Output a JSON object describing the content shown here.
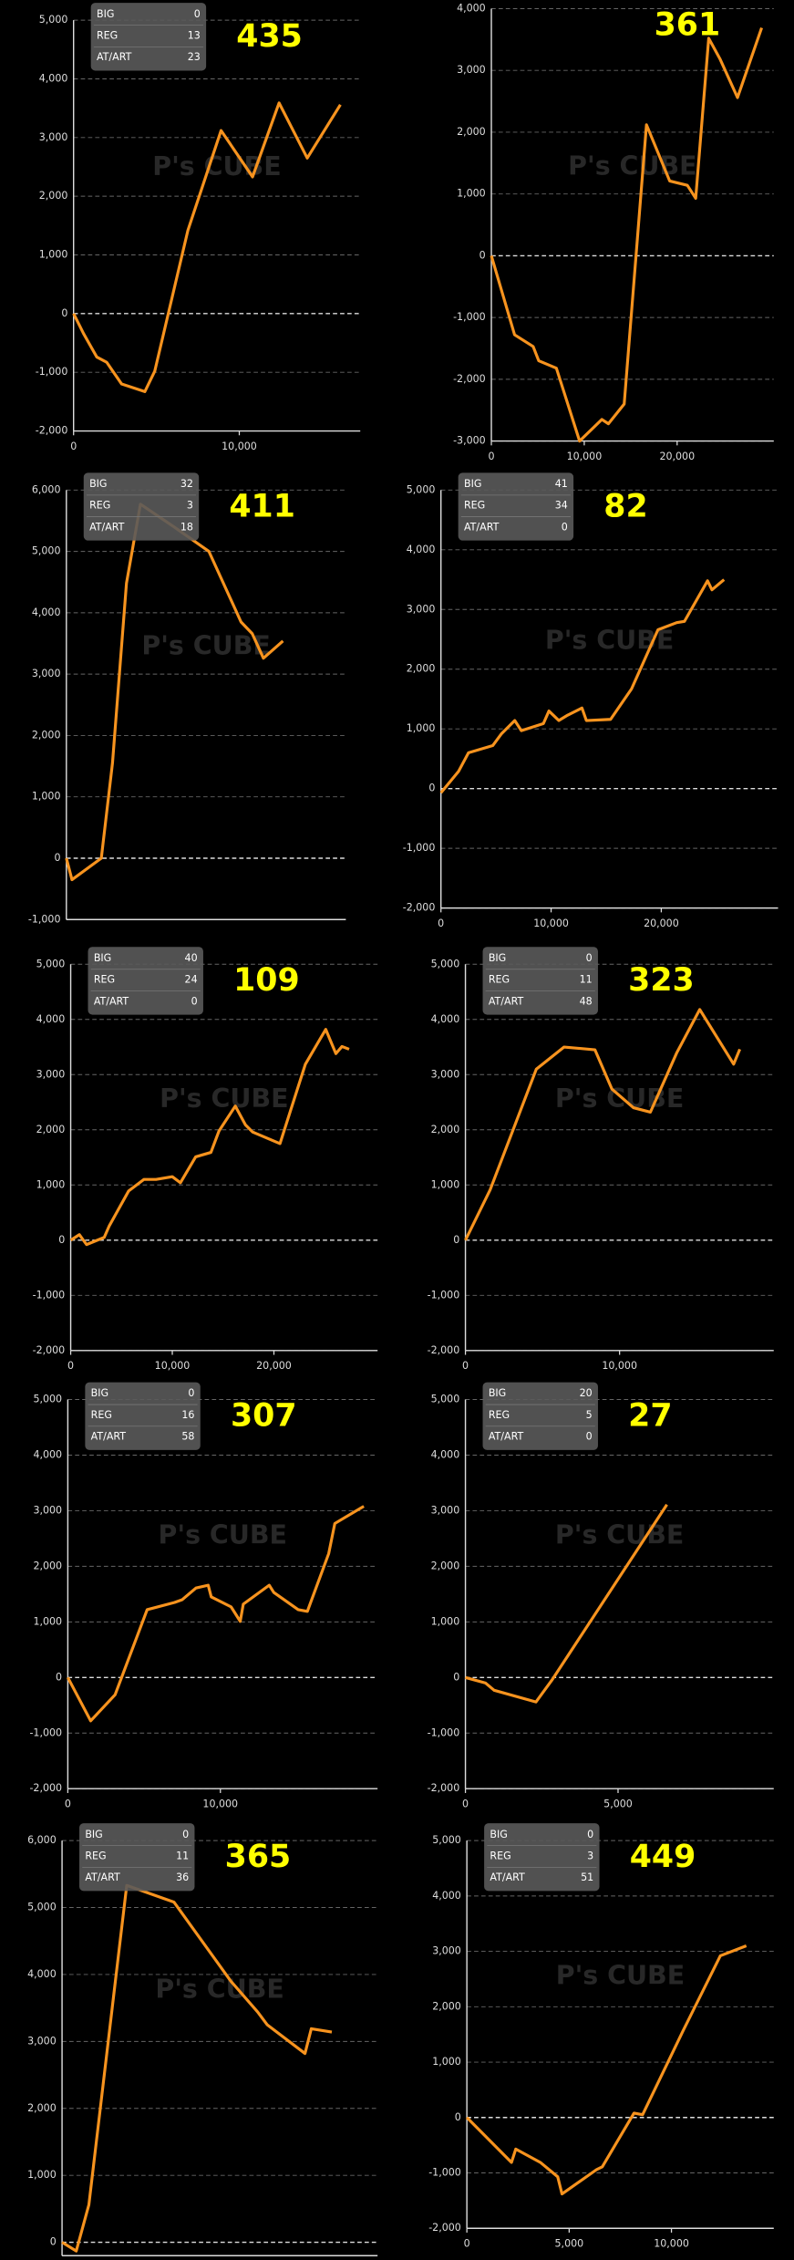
{
  "watermark": "P's CUBE",
  "chart_data": [
    {
      "type": "line",
      "badge": "435",
      "stats": [
        {
          "label": "BIG",
          "value": 0
        },
        {
          "label": "REG",
          "value": 13
        },
        {
          "label": "AT/ART",
          "value": 23
        }
      ],
      "xlim": [
        0,
        17300
      ],
      "xticks": [
        0,
        {
          "value": 10000,
          "label": "10,000"
        }
      ],
      "ylim": [
        -2000,
        5000
      ],
      "yticks": [
        {
          "value": -2000,
          "label": "-2,000"
        },
        {
          "value": -1000,
          "label": "-1,000"
        },
        0,
        {
          "value": 1000,
          "label": "1,000"
        },
        {
          "value": 2000,
          "label": "2,000"
        },
        {
          "value": 3000,
          "label": "3,000"
        },
        {
          "value": 4000,
          "label": "4,000"
        },
        {
          "value": 5000,
          "label": "5,000"
        }
      ],
      "grid": true,
      "series": [
        {
          "color": "#f7931e",
          "x": [
            0,
            600,
            1400,
            2000,
            2900,
            4300,
            4900,
            6900,
            8900,
            10800,
            12400,
            14100,
            16100
          ],
          "values": [
            0,
            -340,
            -740,
            -830,
            -1200,
            -1330,
            -980,
            1420,
            3120,
            2330,
            3590,
            2650,
            3560
          ]
        }
      ]
    },
    {
      "type": "line",
      "badge": "361",
      "xlim": [
        0,
        30400
      ],
      "xticks": [
        0,
        {
          "value": 10000,
          "label": "10,000"
        },
        {
          "value": 20000,
          "label": "20,000"
        }
      ],
      "ylim": [
        -3000,
        4000
      ],
      "yticks": [
        {
          "value": -3000,
          "label": "-3,000"
        },
        {
          "value": -2000,
          "label": "-2,000"
        },
        {
          "value": -1000,
          "label": "-1,000"
        },
        0,
        {
          "value": 1000,
          "label": "1,000"
        },
        {
          "value": 2000,
          "label": "2,000"
        },
        {
          "value": 3000,
          "label": "3,000"
        },
        {
          "value": 4000,
          "label": "4,000"
        }
      ],
      "grid": true,
      "series": [
        {
          "color": "#f7931e",
          "x": [
            0,
            2500,
            4500,
            5100,
            7000,
            9500,
            11900,
            12600,
            14300,
            16700,
            19200,
            21100,
            22000,
            23400,
            24600,
            26500,
            29100
          ],
          "values": [
            0,
            -1280,
            -1470,
            -1700,
            -1820,
            -3000,
            -2650,
            -2720,
            -2400,
            2120,
            1210,
            1140,
            930,
            3520,
            3190,
            2560,
            3690
          ]
        }
      ]
    },
    {
      "type": "line",
      "badge": "411",
      "stats": [
        {
          "label": "BIG",
          "value": 32
        },
        {
          "label": "REG",
          "value": 3
        },
        {
          "label": "AT/ART",
          "value": 18
        }
      ],
      "xlim": [
        0,
        20000
      ],
      "xticks": [],
      "ylim": [
        -1000,
        6000
      ],
      "yticks": [
        {
          "value": -1000,
          "label": "-1,000"
        },
        0,
        {
          "value": 1000,
          "label": "1,000"
        },
        {
          "value": 2000,
          "label": "2,000"
        },
        {
          "value": 3000,
          "label": "3,000"
        },
        {
          "value": 4000,
          "label": "4,000"
        },
        {
          "value": 5000,
          "label": "5,000"
        },
        {
          "value": 6000,
          "label": "6,000"
        }
      ],
      "grid": true,
      "series": [
        {
          "color": "#f7931e",
          "x": [
            0,
            400,
            2500,
            3300,
            4300,
            5300,
            7700,
            10200,
            12500,
            13300,
            14100,
            15500
          ],
          "values": [
            0,
            -350,
            0,
            1550,
            4480,
            5770,
            5400,
            5000,
            3850,
            3660,
            3260,
            3540
          ]
        }
      ]
    },
    {
      "type": "line",
      "badge": "82",
      "stats": [
        {
          "label": "BIG",
          "value": 41
        },
        {
          "label": "REG",
          "value": 34
        },
        {
          "label": "AT/ART",
          "value": 0
        }
      ],
      "xlim": [
        0,
        30600
      ],
      "xticks": [
        0,
        {
          "value": 10000,
          "label": "10,000"
        },
        {
          "value": 20000,
          "label": "20,000"
        }
      ],
      "ylim": [
        -2000,
        5000
      ],
      "yticks": [
        {
          "value": -2000,
          "label": "-2,000"
        },
        {
          "value": -1000,
          "label": "-1,000"
        },
        0,
        {
          "value": 1000,
          "label": "1,000"
        },
        {
          "value": 2000,
          "label": "2,000"
        },
        {
          "value": 3000,
          "label": "3,000"
        },
        {
          "value": 4000,
          "label": "4,000"
        },
        {
          "value": 5000,
          "label": "5,000"
        }
      ],
      "grid": true,
      "series": [
        {
          "color": "#f7931e",
          "x": [
            0,
            1600,
            2500,
            4700,
            5500,
            6700,
            7300,
            9300,
            9800,
            10700,
            11500,
            12800,
            13200,
            15400,
            17300,
            19700,
            21400,
            22100,
            24200,
            24600,
            25700
          ],
          "values": [
            -70,
            290,
            600,
            720,
            920,
            1140,
            970,
            1090,
            1300,
            1140,
            1230,
            1350,
            1140,
            1160,
            1670,
            2660,
            2780,
            2800,
            3480,
            3330,
            3500
          ]
        }
      ]
    },
    {
      "type": "line",
      "badge": "109",
      "stats": [
        {
          "label": "BIG",
          "value": 40
        },
        {
          "label": "REG",
          "value": 24
        },
        {
          "label": "AT/ART",
          "value": 0
        }
      ],
      "xlim": [
        0,
        30200
      ],
      "xticks": [
        0,
        {
          "value": 10000,
          "label": "10,000"
        },
        {
          "value": 20000,
          "label": "20,000"
        }
      ],
      "ylim": [
        -2000,
        5000
      ],
      "yticks": [
        {
          "value": -2000,
          "label": "-2,000"
        },
        {
          "value": -1000,
          "label": "-1,000"
        },
        0,
        {
          "value": 1000,
          "label": "1,000"
        },
        {
          "value": 2000,
          "label": "2,000"
        },
        {
          "value": 3000,
          "label": "3,000"
        },
        {
          "value": 4000,
          "label": "4,000"
        },
        {
          "value": 5000,
          "label": "5,000"
        }
      ],
      "grid": true,
      "series": [
        {
          "color": "#f7931e",
          "x": [
            0,
            850,
            1560,
            3300,
            3800,
            5700,
            7200,
            8400,
            10000,
            10800,
            12300,
            13800,
            14600,
            16200,
            17200,
            17900,
            20600,
            23100,
            25100,
            26100,
            26700,
            27400
          ],
          "values": [
            0,
            100,
            -80,
            50,
            260,
            890,
            1100,
            1100,
            1150,
            1040,
            1510,
            1590,
            1980,
            2430,
            2090,
            1960,
            1750,
            3190,
            3820,
            3380,
            3510,
            3460
          ]
        }
      ]
    },
    {
      "type": "line",
      "badge": "323",
      "stats": [
        {
          "label": "BIG",
          "value": 0
        },
        {
          "label": "REG",
          "value": 11
        },
        {
          "label": "AT/ART",
          "value": 48
        }
      ],
      "xlim": [
        0,
        20000
      ],
      "xticks": [
        0,
        {
          "value": 10000,
          "label": "10,000"
        }
      ],
      "ylim": [
        -2000,
        5000
      ],
      "yticks": [
        {
          "value": -2000,
          "label": "-2,000"
        },
        {
          "value": -1000,
          "label": "-1,000"
        },
        0,
        {
          "value": 1000,
          "label": "1,000"
        },
        {
          "value": 2000,
          "label": "2,000"
        },
        {
          "value": 3000,
          "label": "3,000"
        },
        {
          "value": 4000,
          "label": "4,000"
        },
        {
          "value": 5000,
          "label": "5,000"
        }
      ],
      "grid": true,
      "series": [
        {
          "color": "#f7931e",
          "x": [
            0,
            1600,
            4600,
            6400,
            8400,
            9500,
            10900,
            12000,
            13700,
            15200,
            17400,
            17800
          ],
          "values": [
            0,
            910,
            3100,
            3500,
            3450,
            2740,
            2400,
            2320,
            3390,
            4180,
            3190,
            3460
          ]
        }
      ]
    },
    {
      "type": "line",
      "badge": "307",
      "stats": [
        {
          "label": "BIG",
          "value": 0
        },
        {
          "label": "REG",
          "value": 16
        },
        {
          "label": "AT/ART",
          "value": 58
        }
      ],
      "xlim": [
        0,
        20300
      ],
      "xticks": [
        0,
        {
          "value": 10000,
          "label": "10,000"
        }
      ],
      "ylim": [
        -2000,
        5000
      ],
      "yticks": [
        {
          "value": -2000,
          "label": "-2,000"
        },
        {
          "value": -1000,
          "label": "-1,000"
        },
        0,
        {
          "value": 1000,
          "label": "1,000"
        },
        {
          "value": 2000,
          "label": "2,000"
        },
        {
          "value": 3000,
          "label": "3,000"
        },
        {
          "value": 4000,
          "label": "4,000"
        },
        {
          "value": 5000,
          "label": "5,000"
        }
      ],
      "grid": true,
      "series": [
        {
          "color": "#f7931e",
          "x": [
            0,
            1500,
            3100,
            5200,
            7000,
            7500,
            8400,
            9200,
            9400,
            10700,
            11300,
            11500,
            13200,
            13500,
            15100,
            15700,
            17100,
            17500,
            19400
          ],
          "values": [
            0,
            -780,
            -310,
            1220,
            1350,
            1400,
            1610,
            1660,
            1450,
            1270,
            1010,
            1320,
            1660,
            1530,
            1220,
            1190,
            2230,
            2770,
            3080
          ]
        }
      ]
    },
    {
      "type": "line",
      "badge": "27",
      "stats": [
        {
          "label": "BIG",
          "value": 20
        },
        {
          "label": "REG",
          "value": 5
        },
        {
          "label": "AT/ART",
          "value": 0
        }
      ],
      "xlim": [
        0,
        10100
      ],
      "xticks": [
        0,
        {
          "value": 5000,
          "label": "5,000"
        }
      ],
      "ylim": [
        -2000,
        5000
      ],
      "yticks": [
        {
          "value": -2000,
          "label": "-2,000"
        },
        {
          "value": -1000,
          "label": "-1,000"
        },
        0,
        {
          "value": 1000,
          "label": "1,000"
        },
        {
          "value": 2000,
          "label": "2,000"
        },
        {
          "value": 3000,
          "label": "3,000"
        },
        {
          "value": 4000,
          "label": "4,000"
        },
        {
          "value": 5000,
          "label": "5,000"
        }
      ],
      "grid": true,
      "series": [
        {
          "color": "#f7931e",
          "x": [
            0,
            660,
            940,
            2310,
            2830,
            6600
          ],
          "values": [
            0,
            -100,
            -230,
            -440,
            -50,
            3110
          ]
        }
      ]
    },
    {
      "type": "line",
      "badge": "365",
      "stats": [
        {
          "label": "BIG",
          "value": 0
        },
        {
          "label": "REG",
          "value": 11
        },
        {
          "label": "AT/ART",
          "value": 36
        }
      ],
      "xlim": [
        0,
        20000
      ],
      "xticks": [],
      "ylim": [
        -200,
        6000
      ],
      "yticks": [
        0,
        {
          "value": 1000,
          "label": "1,000"
        },
        {
          "value": 2000,
          "label": "2,000"
        },
        {
          "value": 3000,
          "label": "3,000"
        },
        {
          "value": 4000,
          "label": "4,000"
        },
        {
          "value": 5000,
          "label": "5,000"
        },
        {
          "value": 6000,
          "label": "6,000"
        }
      ],
      "grid": true,
      "series": [
        {
          "color": "#f7931e",
          "x": [
            0,
            900,
            1700,
            4100,
            7100,
            10700,
            12400,
            13000,
            15400,
            15800,
            17100
          ],
          "values": [
            0,
            -130,
            560,
            5330,
            5080,
            3900,
            3440,
            3250,
            2820,
            3190,
            3140
          ]
        }
      ]
    },
    {
      "type": "line",
      "badge": "449",
      "stats": [
        {
          "label": "BIG",
          "value": 0
        },
        {
          "label": "REG",
          "value": 3
        },
        {
          "label": "AT/ART",
          "value": 51
        }
      ],
      "xlim": [
        0,
        15000
      ],
      "xticks": [
        0,
        {
          "value": 5000,
          "label": "5,000"
        },
        {
          "value": 10000,
          "label": "10,000"
        }
      ],
      "ylim": [
        -2000,
        5000
      ],
      "yticks": [
        {
          "value": -2000,
          "label": "-2,000"
        },
        {
          "value": -1000,
          "label": "-1,000"
        },
        0,
        {
          "value": 1000,
          "label": "1,000"
        },
        {
          "value": 2000,
          "label": "2,000"
        },
        {
          "value": 3000,
          "label": "3,000"
        },
        {
          "value": 4000,
          "label": "4,000"
        },
        {
          "value": 5000,
          "label": "5,000"
        }
      ],
      "grid": true,
      "series": [
        {
          "color": "#f7931e",
          "x": [
            0,
            2180,
            2390,
            3590,
            4440,
            4650,
            6340,
            6620,
            8170,
            8590,
            10560,
            12390,
            13660
          ],
          "values": [
            0,
            -810,
            -570,
            -810,
            -1070,
            -1380,
            -940,
            -890,
            80,
            50,
            1560,
            2920,
            3100
          ]
        }
      ]
    }
  ]
}
